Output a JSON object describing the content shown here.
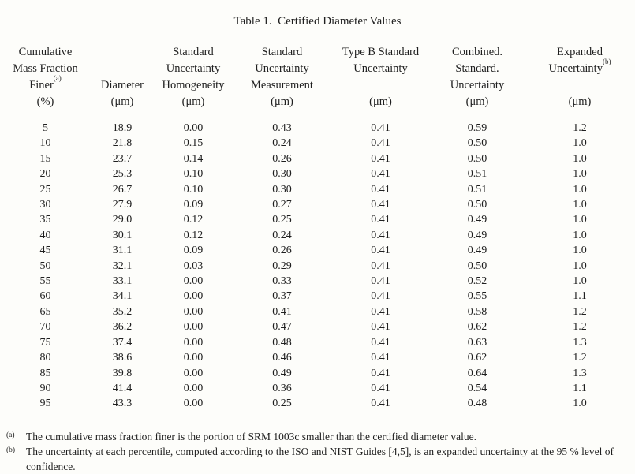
{
  "page": {
    "background": "#fdfdfa",
    "text_color": "#1f1f1f"
  },
  "table": {
    "title": "Table 1.  Certified Diameter Values",
    "header": {
      "columns": [
        {
          "id": "cumulative-mass-fraction-finer",
          "lines": [
            {
              "text": "Cumulative"
            },
            {
              "text": "Mass Fraction"
            },
            {
              "text": "Finer",
              "sup": "(a)"
            },
            {
              "text": "(%)"
            }
          ]
        },
        {
          "id": "diameter",
          "lines": [
            {
              "text": ""
            },
            {
              "text": ""
            },
            {
              "text": "Diameter"
            },
            {
              "text": "(μm)"
            }
          ]
        },
        {
          "id": "standard-uncertainty-homogeneity",
          "lines": [
            {
              "text": "Standard"
            },
            {
              "text": "Uncertainty"
            },
            {
              "text": "Homogeneity"
            },
            {
              "text": "(μm)"
            }
          ]
        },
        {
          "id": "standard-uncertainty-measurement",
          "lines": [
            {
              "text": "Standard"
            },
            {
              "text": "Uncertainty"
            },
            {
              "text": "Measurement"
            },
            {
              "text": "(μm)"
            }
          ]
        },
        {
          "id": "type-b-standard-uncertainty",
          "lines": [
            {
              "text": "Type B Standard"
            },
            {
              "text": "Uncertainty"
            },
            {
              "text": ""
            },
            {
              "text": "(μm)"
            }
          ]
        },
        {
          "id": "combined-standard-uncertainty",
          "lines": [
            {
              "text": "Combined."
            },
            {
              "text": "Standard."
            },
            {
              "text": "Uncertainty"
            },
            {
              "text": "(μm)"
            }
          ]
        },
        {
          "id": "expanded-uncertainty",
          "lines": [
            {
              "text": "Expanded"
            },
            {
              "text": "Uncertainty",
              "sup": "(b)"
            },
            {
              "text": ""
            },
            {
              "text": "(μm)"
            }
          ]
        }
      ]
    },
    "rows": [
      [
        "5",
        "18.9",
        "0.00",
        "0.43",
        "0.41",
        "0.59",
        "1.2"
      ],
      [
        "10",
        "21.8",
        "0.15",
        "0.24",
        "0.41",
        "0.50",
        "1.0"
      ],
      [
        "15",
        "23.7",
        "0.14",
        "0.26",
        "0.41",
        "0.50",
        "1.0"
      ],
      [
        "20",
        "25.3",
        "0.10",
        "0.30",
        "0.41",
        "0.51",
        "1.0"
      ],
      [
        "25",
        "26.7",
        "0.10",
        "0.30",
        "0.41",
        "0.51",
        "1.0"
      ],
      [
        "30",
        "27.9",
        "0.09",
        "0.27",
        "0.41",
        "0.50",
        "1.0"
      ],
      [
        "35",
        "29.0",
        "0.12",
        "0.25",
        "0.41",
        "0.49",
        "1.0"
      ],
      [
        "40",
        "30.1",
        "0.12",
        "0.24",
        "0.41",
        "0.49",
        "1.0"
      ],
      [
        "45",
        "31.1",
        "0.09",
        "0.26",
        "0.41",
        "0.49",
        "1.0"
      ],
      [
        "50",
        "32.1",
        "0.03",
        "0.29",
        "0.41",
        "0.50",
        "1.0"
      ],
      [
        "55",
        "33.1",
        "0.00",
        "0.33",
        "0.41",
        "0.52",
        "1.0"
      ],
      [
        "60",
        "34.1",
        "0.00",
        "0.37",
        "0.41",
        "0.55",
        "1.1"
      ],
      [
        "65",
        "35.2",
        "0.00",
        "0.41",
        "0.41",
        "0.58",
        "1.2"
      ],
      [
        "70",
        "36.2",
        "0.00",
        "0.47",
        "0.41",
        "0.62",
        "1.2"
      ],
      [
        "75",
        "37.4",
        "0.00",
        "0.48",
        "0.41",
        "0.63",
        "1.3"
      ],
      [
        "80",
        "38.6",
        "0.00",
        "0.46",
        "0.41",
        "0.62",
        "1.2"
      ],
      [
        "85",
        "39.8",
        "0.00",
        "0.49",
        "0.41",
        "0.64",
        "1.3"
      ],
      [
        "90",
        "41.4",
        "0.00",
        "0.36",
        "0.41",
        "0.54",
        "1.1"
      ],
      [
        "95",
        "43.3",
        "0.00",
        "0.25",
        "0.41",
        "0.48",
        "1.0"
      ]
    ]
  },
  "footnotes": [
    {
      "marker": "(a)",
      "text": "The cumulative mass fraction finer is the portion of SRM 1003c smaller than the certified diameter value."
    },
    {
      "marker": "(b)",
      "text": "The uncertainty at each percentile, computed according to the ISO and NIST Guides [4,5], is an expanded uncertainty at the 95 % level of confidence."
    }
  ]
}
